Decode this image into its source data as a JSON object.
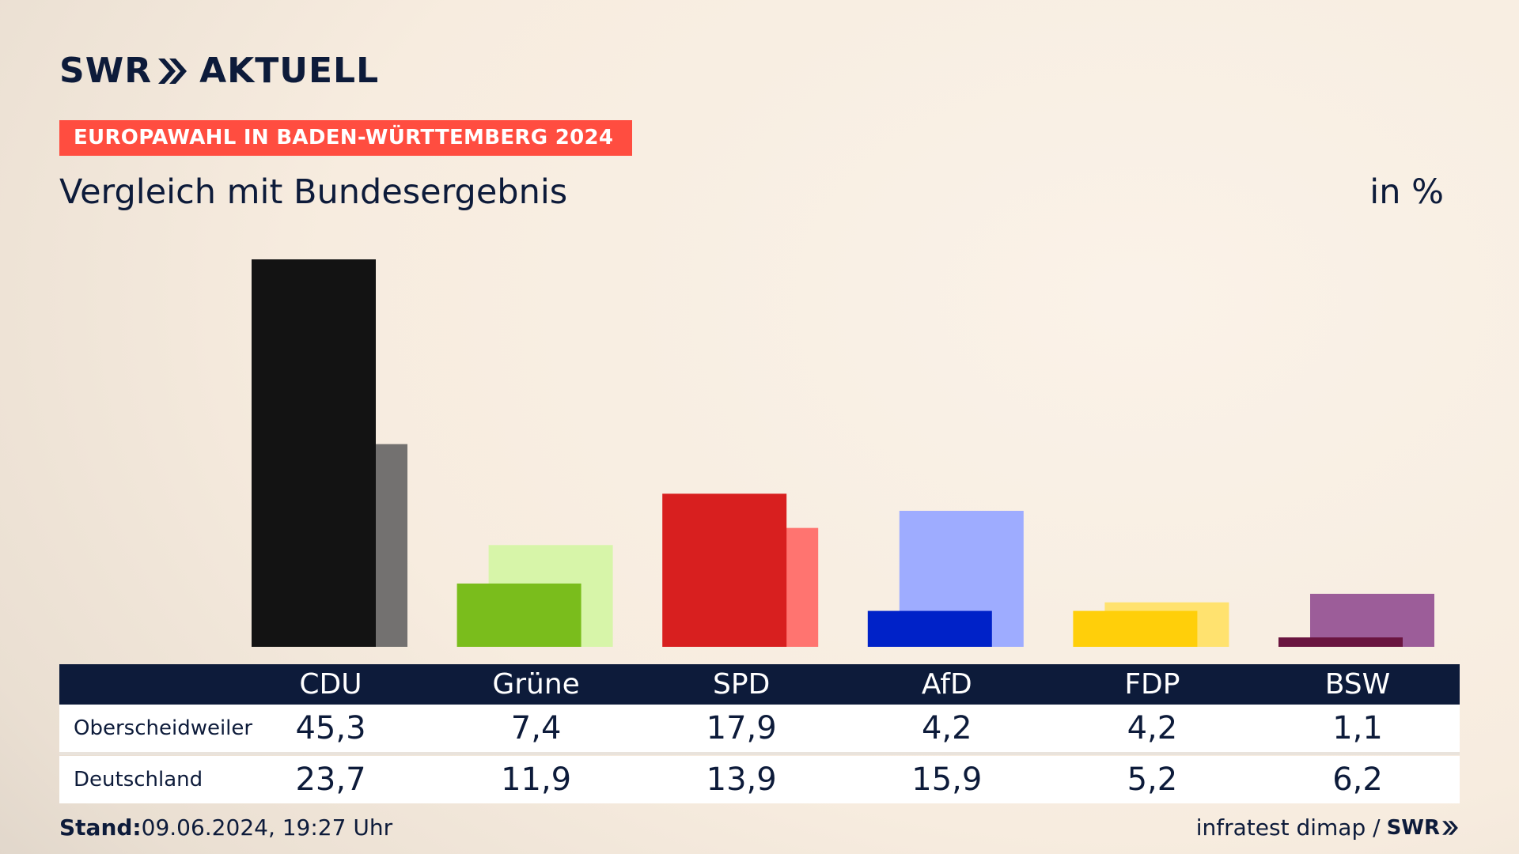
{
  "brand": {
    "logo_left": "SWR",
    "logo_right": "AKTUELL"
  },
  "banner": "EUROPAWAHL IN BADEN-WÜRTTEMBERG 2024",
  "subtitle": "Vergleich mit Bundesergebnis",
  "unit": "in %",
  "footer": {
    "stand_label": "Stand:",
    "stand_value": "09.06.2024, 19:27 Uhr",
    "source": "infratest dimap /",
    "source_logo": "SWR"
  },
  "colors": {
    "navy": "#0d1b3a",
    "banner": "#ff4d40"
  },
  "chart_data": {
    "type": "bar",
    "title": "Vergleich mit Bundesergebnis",
    "ylabel": "in %",
    "categories": [
      "CDU",
      "Grüne",
      "SPD",
      "AfD",
      "FDP",
      "BSW"
    ],
    "series": [
      {
        "name": "Oberscheidweiler",
        "values": [
          45.3,
          7.4,
          17.9,
          4.2,
          4.2,
          1.1
        ],
        "colors": [
          "#131313",
          "#7abd1c",
          "#d81f1f",
          "#0022c8",
          "#ffcf0a",
          "#6a1540"
        ]
      },
      {
        "name": "Deutschland",
        "values": [
          23.7,
          11.9,
          13.9,
          15.9,
          5.2,
          6.2
        ],
        "colors": [
          "#737170",
          "#d7f5a9",
          "#ff7470",
          "#9eacff",
          "#ffe26f",
          "#9c5d99"
        ]
      }
    ],
    "labels": {
      "Oberscheidweiler": [
        "45,3",
        "7,4",
        "17,9",
        "4,2",
        "4,2",
        "1,1"
      ],
      "Deutschland": [
        "23,7",
        "11,9",
        "13,9",
        "15,9",
        "5,2",
        "6,2"
      ]
    },
    "ylim": [
      0,
      45.3
    ],
    "grid": false,
    "legend": "table-below"
  }
}
